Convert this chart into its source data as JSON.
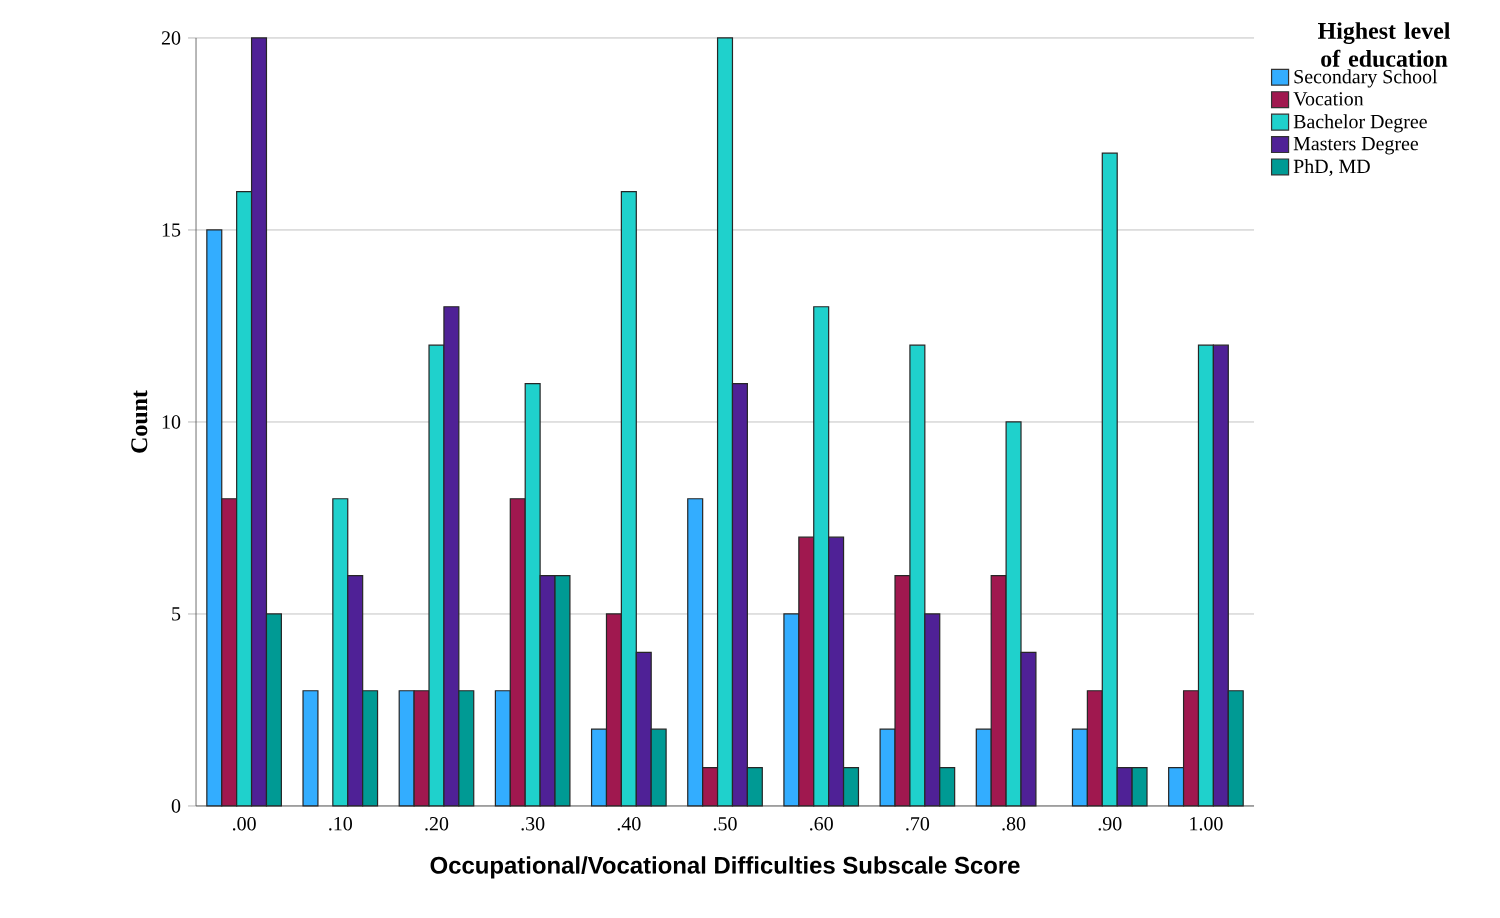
{
  "chart_data": {
    "type": "bar",
    "xlabel": "Occupational/Vocational Difficulties Subscale Score",
    "ylabel": "Count",
    "legend_title": "Highest level of education",
    "categories": [
      ".00",
      ".10",
      ".20",
      ".30",
      ".40",
      ".50",
      ".60",
      ".70",
      ".80",
      ".90",
      "1.00"
    ],
    "series": [
      {
        "name": "Secondary School",
        "color": "#33adff",
        "values": [
          15,
          3,
          3,
          3,
          2,
          8,
          5,
          2,
          2,
          2,
          1
        ]
      },
      {
        "name": "Vocation",
        "color": "#a0184f",
        "values": [
          8,
          null,
          3,
          8,
          5,
          1,
          7,
          6,
          6,
          3,
          3
        ]
      },
      {
        "name": "Bachelor Degree",
        "color": "#1fd1cc",
        "values": [
          16,
          8,
          12,
          11,
          16,
          20,
          13,
          12,
          10,
          17,
          12
        ]
      },
      {
        "name": "Masters Degree",
        "color": "#4f2196",
        "values": [
          20,
          6,
          13,
          6,
          4,
          11,
          7,
          5,
          4,
          1,
          12
        ]
      },
      {
        "name": "PhD, MD",
        "color": "#009a94",
        "values": [
          5,
          3,
          3,
          6,
          2,
          1,
          1,
          1,
          null,
          1,
          3
        ]
      }
    ],
    "ylim": [
      0,
      20
    ],
    "yticks": [
      0,
      5,
      10,
      15,
      20
    ],
    "grid": "y",
    "legend": "right"
  }
}
